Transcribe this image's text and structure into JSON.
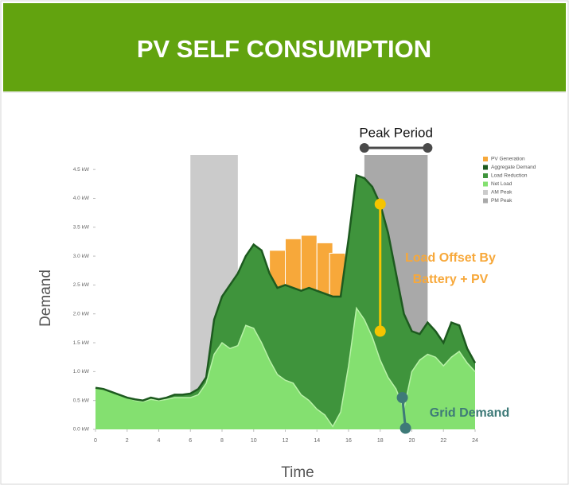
{
  "chart_data": {
    "type": "area",
    "title": "PV SELF CONSUMPTION",
    "x_label": "Time",
    "y_label": "Demand",
    "xlim": [
      0,
      24
    ],
    "xticks": [
      0,
      2,
      4,
      6,
      8,
      10,
      12,
      14,
      16,
      18,
      20,
      22,
      24
    ],
    "ylim": [
      0,
      4.75
    ],
    "yticks": [
      {
        "value": 0,
        "label": "0.0 kW"
      },
      {
        "value": 0.5,
        "label": "0.5 kW"
      },
      {
        "value": 1,
        "label": "1.0 kW"
      },
      {
        "value": 1.5,
        "label": "1.5 kW"
      },
      {
        "value": 2,
        "label": "2.0 kW"
      },
      {
        "value": 2.5,
        "label": "2.5 kW"
      },
      {
        "value": 3,
        "label": "3.0 kW"
      },
      {
        "value": 3.5,
        "label": "3.5 kW"
      },
      {
        "value": 4,
        "label": "4.0 kW"
      },
      {
        "value": 4.5,
        "label": "4.5 kW"
      }
    ],
    "x": [
      0,
      0.5,
      1,
      1.5,
      2,
      2.5,
      3,
      3.5,
      4,
      4.5,
      5,
      5.5,
      6,
      6.5,
      7,
      7.5,
      8,
      8.5,
      9,
      9.5,
      10,
      10.5,
      11,
      11.5,
      12,
      12.5,
      13,
      13.5,
      14,
      14.5,
      15,
      15.5,
      16,
      16.5,
      17,
      17.5,
      18,
      18.5,
      19,
      19.5,
      20,
      20.5,
      21,
      21.5,
      22,
      22.5,
      23,
      23.5,
      24
    ],
    "pv_generation": {
      "name": "PV Generation",
      "color": "#f7a83a",
      "x": [
        11.5,
        12.5,
        13.5,
        14.5,
        15.3
      ],
      "values": [
        3.1,
        3.3,
        3.36,
        3.23,
        3.05
      ]
    },
    "series": [
      {
        "name": "Aggregate Demand",
        "color": "#1d5a1f",
        "values": [
          0.72,
          0.7,
          0.65,
          0.6,
          0.55,
          0.52,
          0.5,
          0.55,
          0.52,
          0.55,
          0.6,
          0.6,
          0.62,
          0.7,
          0.9,
          1.9,
          2.3,
          2.5,
          2.7,
          3.0,
          3.2,
          3.1,
          2.7,
          2.45,
          2.5,
          2.45,
          2.4,
          2.45,
          2.4,
          2.35,
          2.3,
          2.3,
          3.3,
          4.4,
          4.35,
          4.2,
          3.9,
          3.4,
          2.7,
          2.0,
          1.7,
          1.65,
          1.85,
          1.7,
          1.5,
          1.85,
          1.8,
          1.4,
          1.15
        ]
      },
      {
        "name": "Load Reduction",
        "color": "#3f943c"
      },
      {
        "name": "Net Load",
        "color": "#84e070",
        "values": [
          0.72,
          0.7,
          0.65,
          0.6,
          0.55,
          0.5,
          0.48,
          0.52,
          0.5,
          0.52,
          0.55,
          0.55,
          0.55,
          0.6,
          0.8,
          1.3,
          1.5,
          1.4,
          1.45,
          1.8,
          1.75,
          1.5,
          1.2,
          0.95,
          0.85,
          0.8,
          0.6,
          0.5,
          0.35,
          0.25,
          0.05,
          0.3,
          1.1,
          2.1,
          1.9,
          1.6,
          1.2,
          0.9,
          0.7,
          0.35,
          1.0,
          1.2,
          1.3,
          1.25,
          1.1,
          1.25,
          1.35,
          1.15,
          1.0
        ]
      }
    ],
    "peaks": [
      {
        "name": "AM Peak",
        "color": "#cbcbcb",
        "range": [
          6,
          9
        ]
      },
      {
        "name": "PM Peak",
        "color": "#a9a9a9",
        "range": [
          17,
          21
        ]
      }
    ],
    "annotations": {
      "peak_period": {
        "text": "Peak Period",
        "range": [
          17,
          21
        ]
      },
      "load_offset": {
        "lines": [
          "Load Offset By",
          "Battery + PV"
        ],
        "color": "#f7a83a",
        "x": [
          18,
          18
        ],
        "y": [
          3.9,
          1.7
        ]
      },
      "grid_demand": {
        "text": "Grid Demand",
        "color": "#3e7a78",
        "x": [
          19.4,
          19.6
        ],
        "y": [
          0.55,
          0.02
        ]
      }
    }
  }
}
